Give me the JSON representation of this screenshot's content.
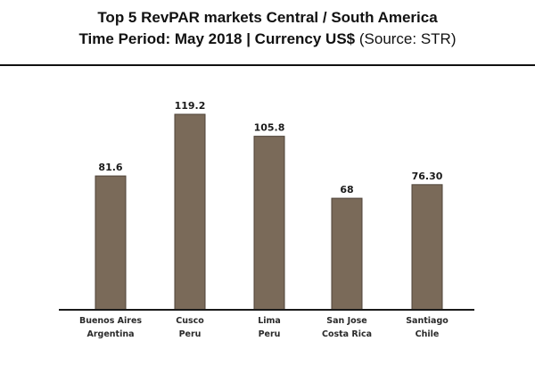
{
  "header": {
    "title": "Top 5 RevPAR markets Central / South America",
    "subtitle_bold": "Time Period: May 2018 | Currency US$",
    "subtitle_plain": "(Source: STR)"
  },
  "colors": {
    "bar": "#7a6a59",
    "bar_edge": "#4d4237",
    "axis": "#1a1a1a"
  },
  "chart_data": {
    "type": "bar",
    "title": "Top 5 RevPAR markets Central / South America",
    "categories": [
      [
        "Buenos Aires",
        "Argentina"
      ],
      [
        "Cusco",
        "Peru"
      ],
      [
        "Lima",
        "Peru"
      ],
      [
        "San Jose",
        "Costa Rica"
      ],
      [
        "Santiago",
        "Chile"
      ]
    ],
    "values": [
      81.6,
      119.2,
      105.8,
      68,
      76.3
    ],
    "value_labels": [
      "81.6",
      "119.2",
      "105.8",
      "68",
      "76.30"
    ],
    "xlabel": "",
    "ylabel": "",
    "ylim": [
      0,
      119.2
    ],
    "grid": false,
    "legend": "none"
  }
}
